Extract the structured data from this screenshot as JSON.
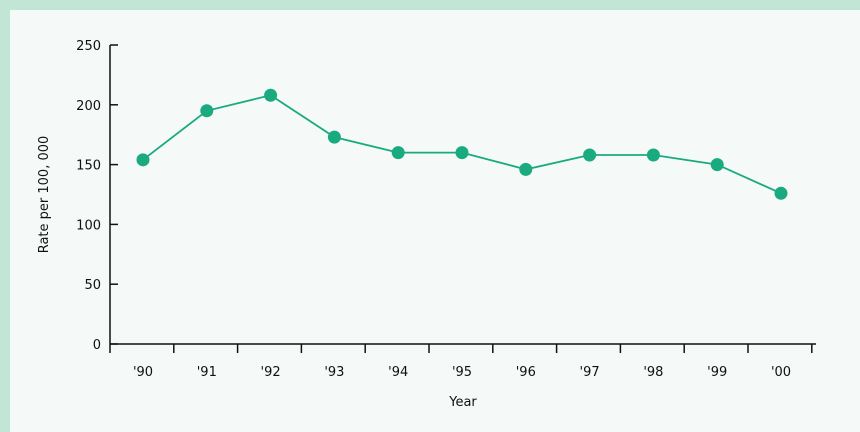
{
  "chart_data": {
    "type": "line",
    "categories": [
      "'90",
      "'91",
      "'92",
      "'93",
      "'94",
      "'95",
      "'96",
      "'97",
      "'98",
      "'99",
      "'00"
    ],
    "values": [
      154,
      195,
      208,
      173,
      160,
      160,
      146,
      158,
      158,
      150,
      126
    ],
    "xlabel": "Year",
    "ylabel": "Rate per 100, 000",
    "ylim": [
      0,
      250
    ],
    "yticks": [
      0,
      50,
      100,
      150,
      200,
      250
    ],
    "grid": false,
    "colors": {
      "line": "#1aaa7f",
      "marker": "#1aaa7f",
      "background": "#f5f9f7",
      "border": "#c2e6d6"
    }
  }
}
